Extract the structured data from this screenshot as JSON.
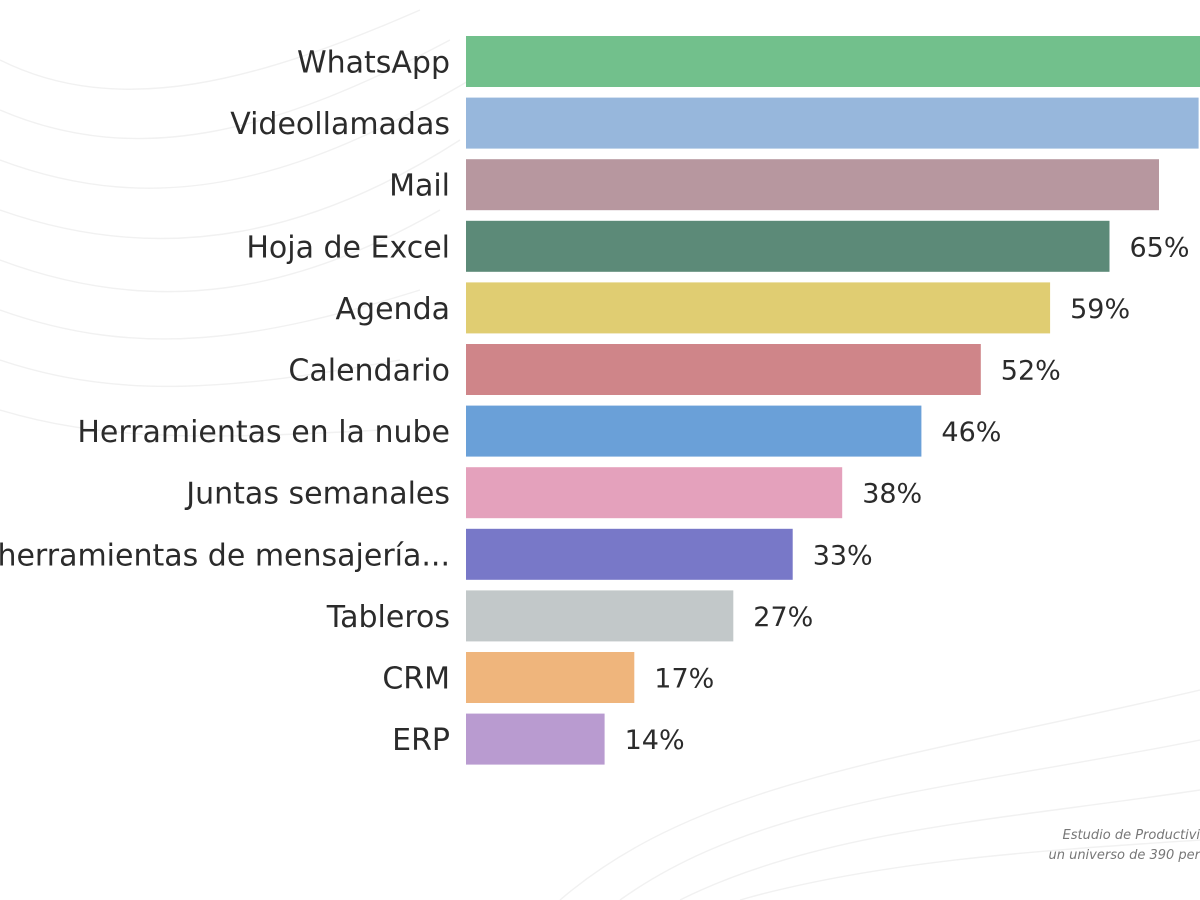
{
  "chart_data": {
    "type": "bar",
    "orientation": "horizontal",
    "categories": [
      "WhatsApp",
      "Videollamadas",
      "Mail",
      "Hoja de Excel",
      "Agenda",
      "Calendario",
      "Herramientas en la nube",
      "Juntas semanales",
      "herramientas de mensajería...",
      "Tableros",
      "CRM",
      "ERP"
    ],
    "values": [
      78,
      74,
      70,
      65,
      59,
      52,
      46,
      38,
      33,
      27,
      17,
      14
    ],
    "value_labels": [
      "",
      "",
      "",
      "65%",
      "59%",
      "52%",
      "46%",
      "38%",
      "33%",
      "27%",
      "17%",
      "14%"
    ],
    "colors": [
      "#72c08c",
      "#97b7dc",
      "#b7979f",
      "#5c8a78",
      "#e0cd72",
      "#cf8589",
      "#6aa0d8",
      "#e4a1bc",
      "#7878c8",
      "#c2c8c9",
      "#efb57c",
      "#b99bd0"
    ],
    "xlabel": "",
    "ylabel": "",
    "xlim": [
      0,
      80
    ],
    "grid": false,
    "legend": "none"
  },
  "footnote": {
    "line1": "Estudio de Productivi",
    "line2": "un universo de 390 per"
  }
}
